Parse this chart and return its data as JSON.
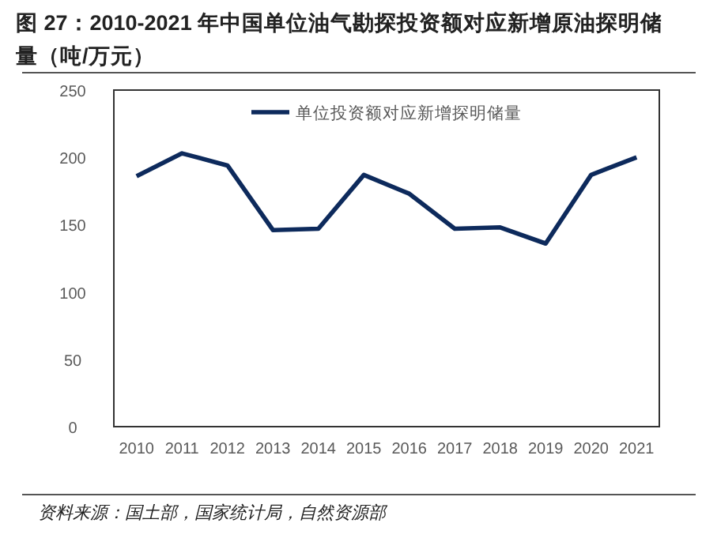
{
  "chart_data": {
    "type": "line",
    "title": "图 27：2010-2021 年中国单位油气勘探投资额对应新增原油探明储量（吨/万元）",
    "categories": [
      "2010",
      "2011",
      "2012",
      "2013",
      "2014",
      "2015",
      "2016",
      "2017",
      "2018",
      "2019",
      "2020",
      "2021"
    ],
    "series": [
      {
        "name": "单位投资额对应新增探明储量",
        "color": "#0d2a5c",
        "values": [
          186,
          203,
          194,
          146,
          147,
          187,
          173,
          147,
          148,
          136,
          187,
          200
        ]
      }
    ],
    "ylim": [
      0,
      250
    ],
    "yticks": [
      0,
      50,
      100,
      150,
      200,
      250
    ],
    "legend": "top",
    "annotations": [
      "资料来源：国土部，国家统计局，自然资源部"
    ]
  }
}
